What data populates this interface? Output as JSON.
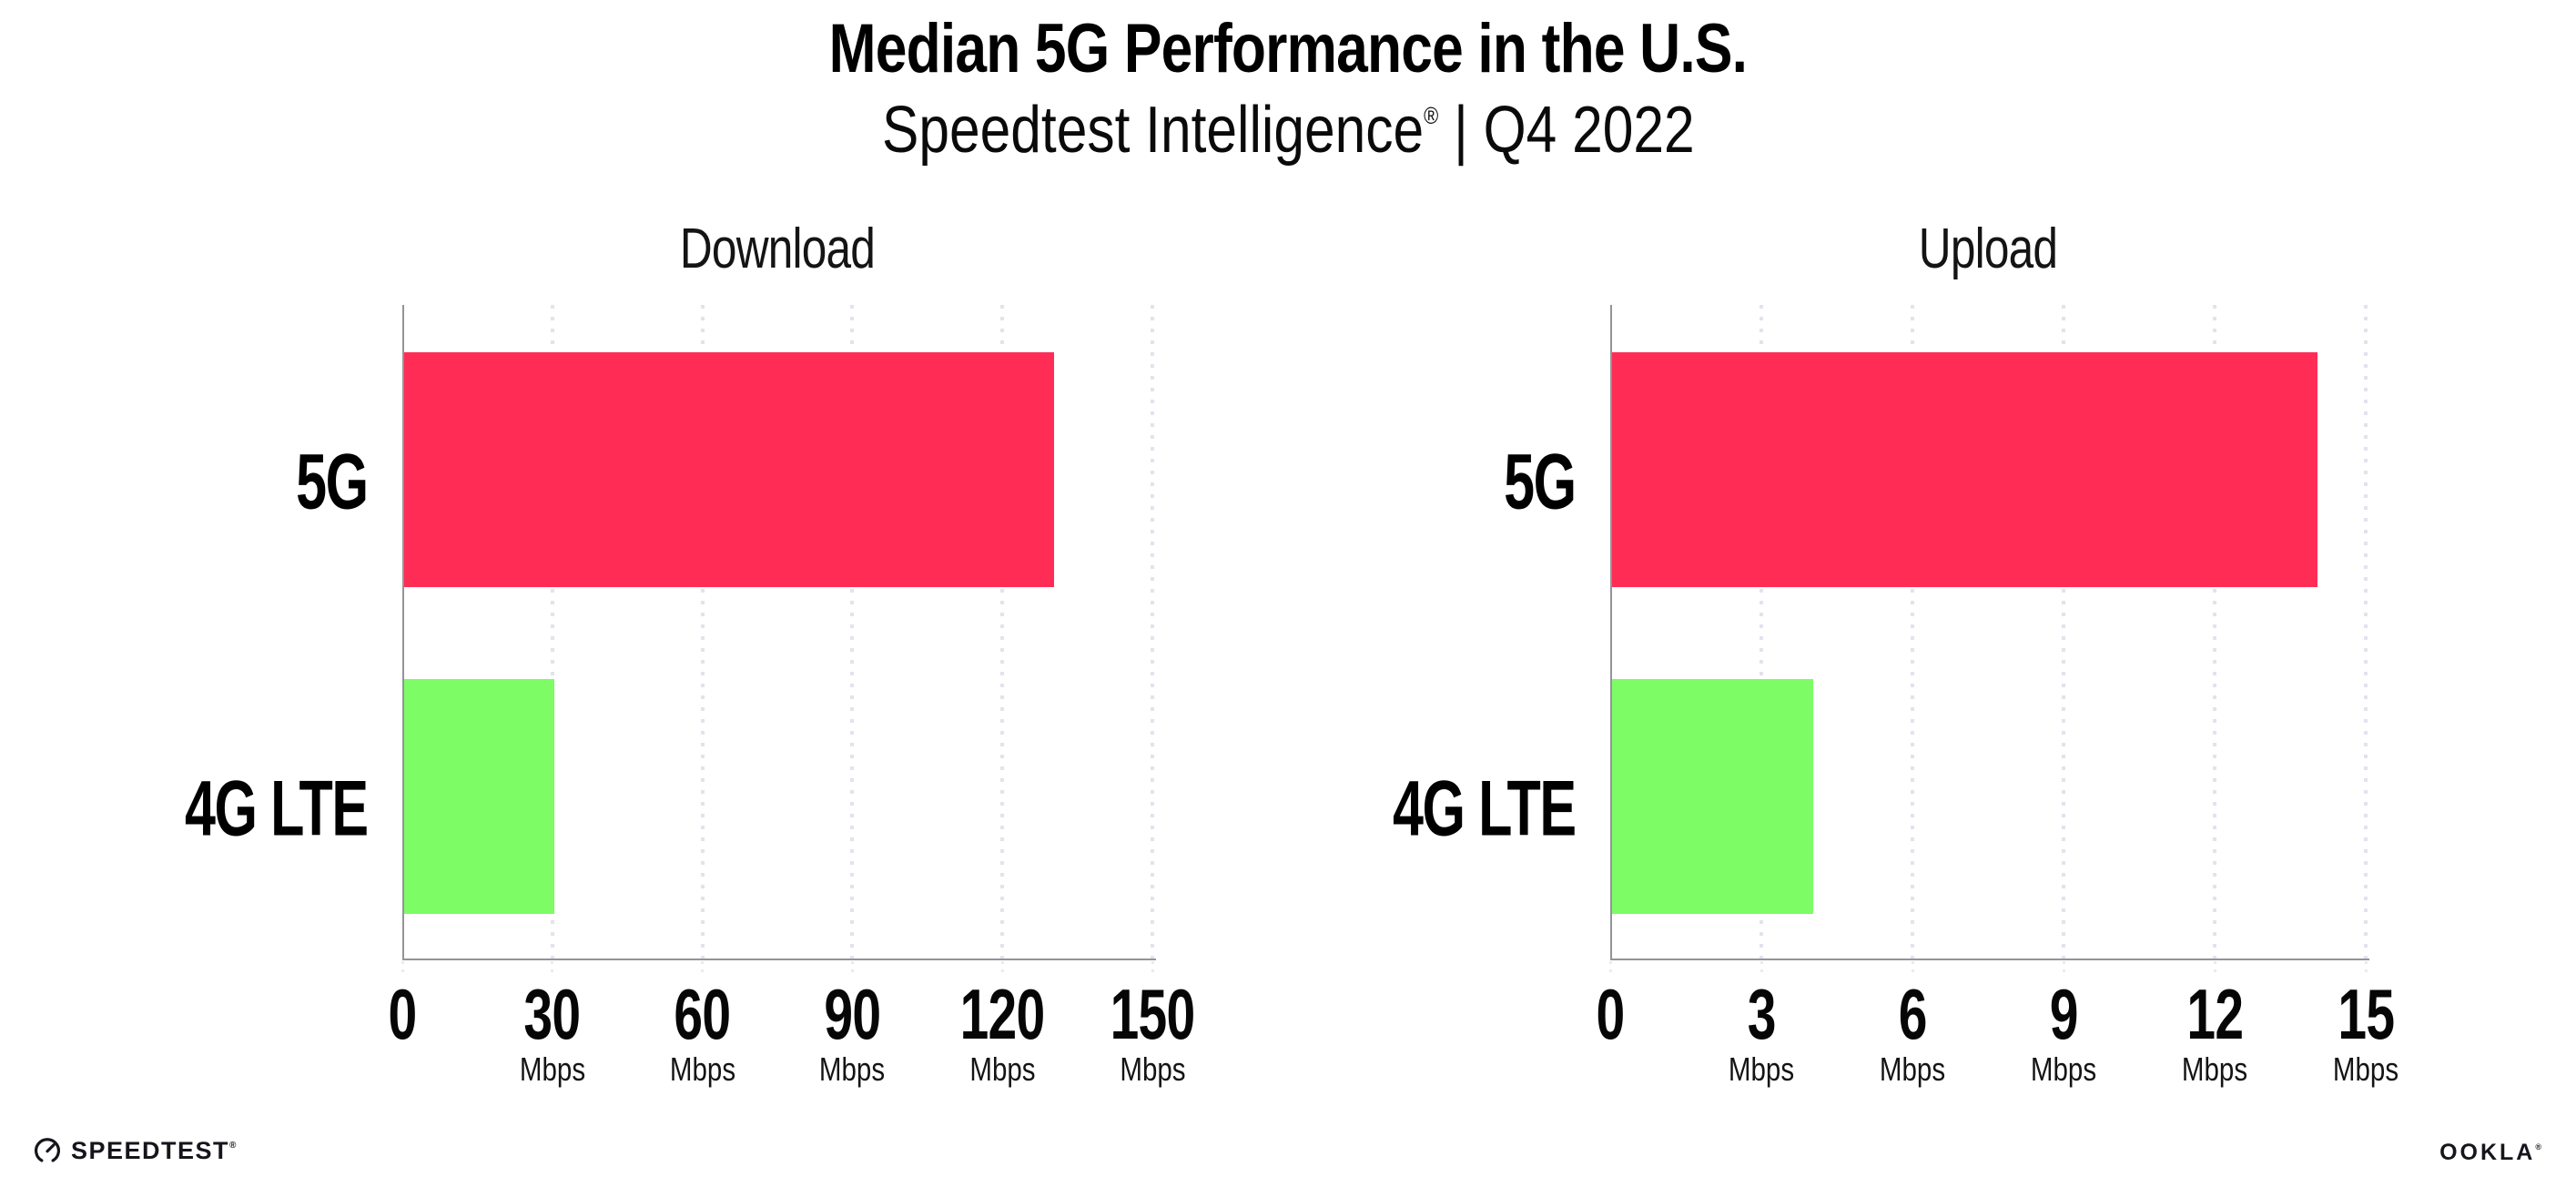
{
  "header": {
    "title": "Median 5G Performance in the U.S.",
    "subtitle_brand": "Speedtest Intelligence",
    "subtitle_reg": "®",
    "subtitle_rest": " | Q4 2022"
  },
  "colors": {
    "bar_5g": "#FF2D55",
    "bar_4g_lte": "#7DFC66",
    "axis": "#939399",
    "gridline": "#E2E3ED",
    "text": "#000000"
  },
  "chart_data": [
    {
      "type": "bar",
      "orientation": "horizontal",
      "title": "Download",
      "categories": [
        "5G",
        "4G LTE"
      ],
      "values": [
        130,
        30
      ],
      "unit": "Mbps",
      "xlim": [
        0,
        150
      ],
      "ticks": [
        0,
        30,
        60,
        90,
        120,
        150
      ],
      "bar_colors": [
        "#FF2D55",
        "#7DFC66"
      ],
      "grid": "dotted-vertical",
      "legend": "none"
    },
    {
      "type": "bar",
      "orientation": "horizontal",
      "title": "Upload",
      "categories": [
        "5G",
        "4G LTE"
      ],
      "values": [
        14,
        4
      ],
      "unit": "Mbps",
      "xlim": [
        0,
        15
      ],
      "ticks": [
        0,
        3,
        6,
        9,
        12,
        15
      ],
      "bar_colors": [
        "#FF2D55",
        "#7DFC66"
      ],
      "grid": "dotted-vertical",
      "legend": "none"
    }
  ],
  "footer": {
    "speedtest_label": "SPEEDTEST",
    "speedtest_reg": "®",
    "ookla_label": "OOKLA",
    "ookla_reg": "®"
  }
}
